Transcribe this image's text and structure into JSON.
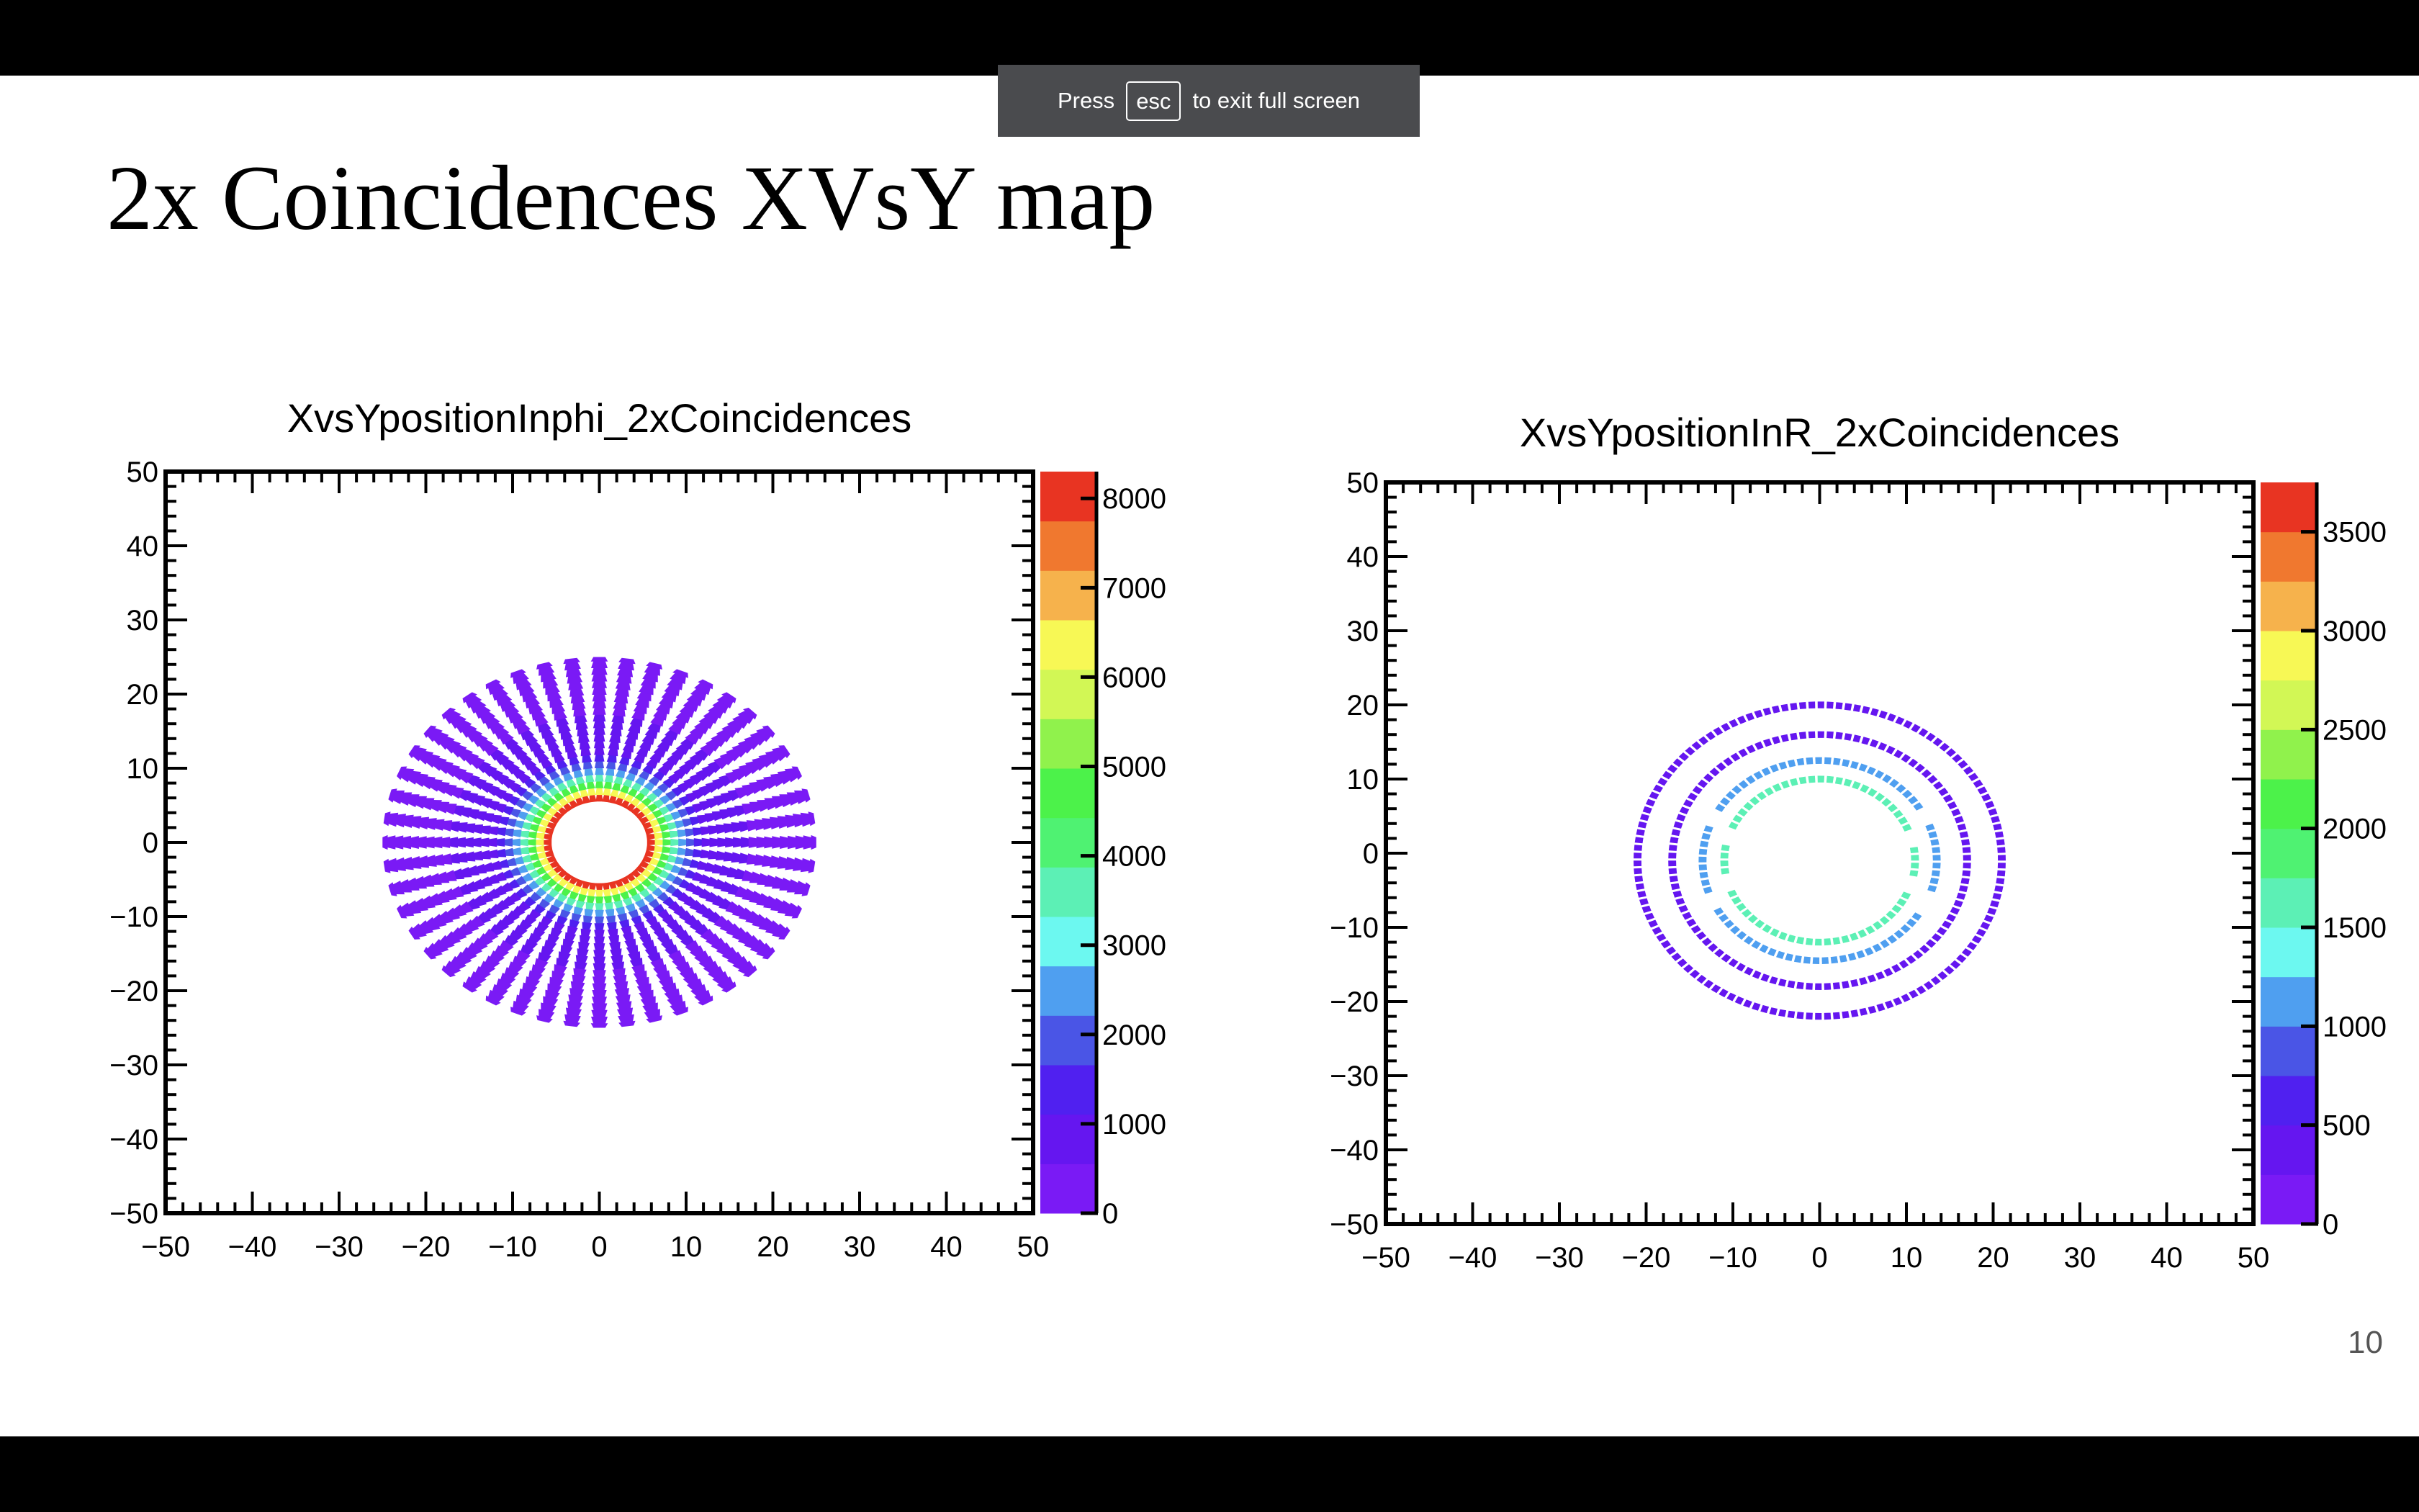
{
  "fullscreen_banner": {
    "press": "Press",
    "key": "esc",
    "rest": "to exit full screen"
  },
  "slide": {
    "title": "2x Coincidences XVsY map",
    "page_number": "10"
  },
  "colors": {
    "palette": [
      "#7a1af5",
      "#6516f0",
      "#5020f0",
      "#4a55e6",
      "#4f9ff0",
      "#6cf8f0",
      "#5cf0b5",
      "#4ff272",
      "#4cf24a",
      "#90f24c",
      "#d2f755",
      "#f7f855",
      "#f6b24c",
      "#f0782f",
      "#e83422"
    ]
  },
  "chart_data": [
    {
      "type": "heatmap",
      "title": "XvsYpositionInphi_2xCoincidences",
      "xlabel": "",
      "ylabel": "",
      "xlim": [
        -50,
        50
      ],
      "ylim": [
        -50,
        50
      ],
      "x_ticks": [
        "−50",
        "−40",
        "−30",
        "−20",
        "−10",
        "0",
        "10",
        "20",
        "30",
        "40",
        "50"
      ],
      "y_ticks": [
        "−50",
        "−40",
        "−30",
        "−20",
        "−10",
        "0",
        "10",
        "20",
        "30",
        "40",
        "50"
      ],
      "z_range": [
        0,
        8300
      ],
      "z_ticks": [
        "0",
        "1000",
        "2000",
        "3000",
        "4000",
        "5000",
        "6000",
        "7000",
        "8000"
      ],
      "z_tick_values": [
        0,
        1000,
        2000,
        3000,
        4000,
        5000,
        6000,
        7000,
        8000
      ],
      "grid": false,
      "pattern": "radial",
      "center": [
        0,
        0
      ],
      "inner_radius": 5.5,
      "outer_radius": 25,
      "spokes": 48,
      "counts_profile": [
        {
          "r": 5.5,
          "count": 8000
        },
        {
          "r": 7,
          "count": 5000
        },
        {
          "r": 9,
          "count": 2500
        },
        {
          "r": 11,
          "count": 1200
        },
        {
          "r": 15,
          "count": 600
        },
        {
          "r": 25,
          "count": 300
        }
      ]
    },
    {
      "type": "heatmap",
      "title": "XvsYpositionInR_2xCoincidences",
      "xlabel": "",
      "ylabel": "",
      "xlim": [
        -50,
        50
      ],
      "ylim": [
        -50,
        50
      ],
      "x_ticks": [
        "−50",
        "−40",
        "−30",
        "−20",
        "−10",
        "0",
        "10",
        "20",
        "30",
        "40",
        "50"
      ],
      "y_ticks": [
        "−50",
        "−40",
        "−30",
        "−20",
        "−10",
        "0",
        "10",
        "20",
        "30",
        "40",
        "50"
      ],
      "z_range": [
        0,
        3750
      ],
      "z_ticks": [
        "0",
        "500",
        "1000",
        "1500",
        "2000",
        "2500",
        "3000",
        "3500"
      ],
      "z_tick_values": [
        0,
        500,
        1000,
        1500,
        2000,
        2500,
        3000,
        3500
      ],
      "grid": false,
      "pattern": "rings",
      "center": [
        0,
        -1
      ],
      "rings": [
        {
          "radius": 11,
          "count": 1700,
          "gap_angles_deg": [
            15,
            165,
            195,
            345
          ]
        },
        {
          "radius": 13.5,
          "count": 1100,
          "gap_angles_deg": [
            25,
            155,
            205,
            335
          ]
        },
        {
          "radius": 17,
          "count": 450,
          "gap_angles_deg": []
        },
        {
          "radius": 21,
          "count": 300,
          "gap_angles_deg": []
        }
      ]
    }
  ]
}
